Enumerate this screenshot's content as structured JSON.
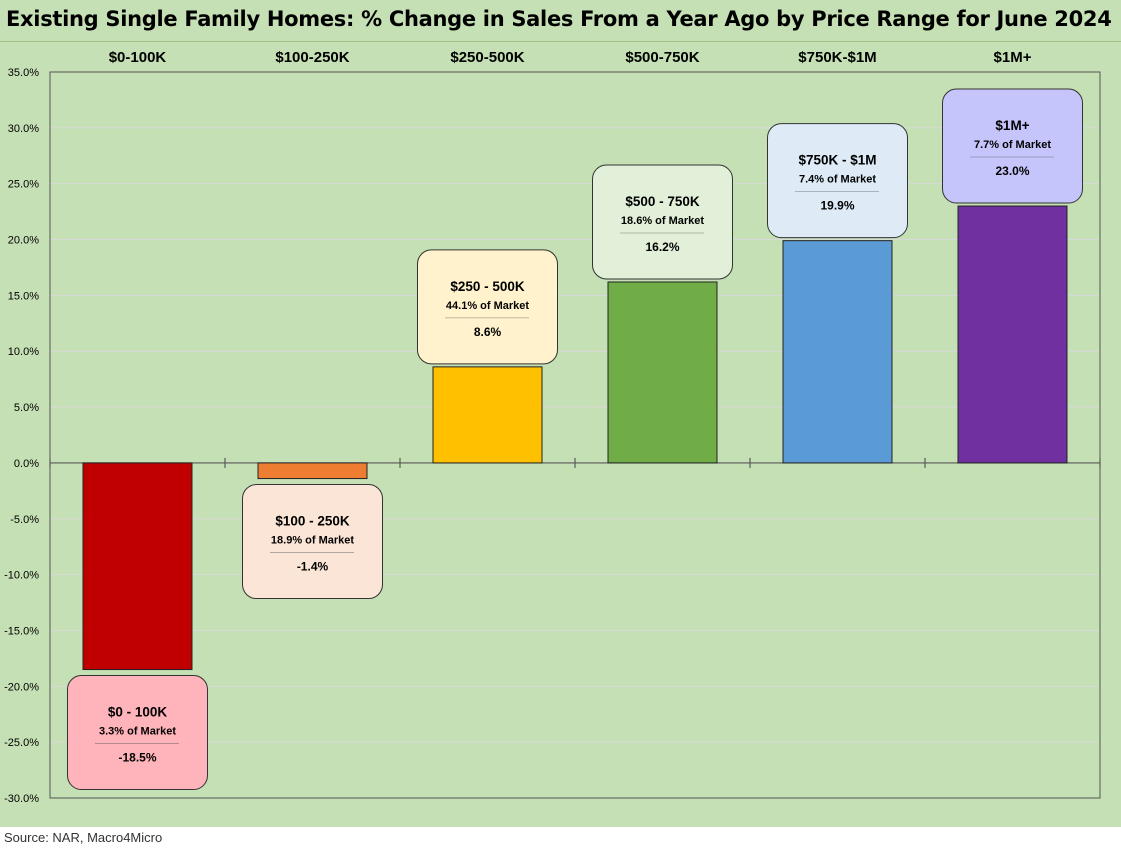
{
  "title": "Existing Single Family Homes: % Change in Sales From a Year Ago by Price Range for June 2024",
  "source": "Source: NAR, Macro4Micro",
  "chart_data": {
    "type": "bar",
    "categories": [
      "$0-100K",
      "$100-250K",
      "$250-500K",
      "$500-750K",
      "$750K-$1M",
      "$1M+"
    ],
    "values": [
      -18.5,
      -1.4,
      8.6,
      16.2,
      19.9,
      23.0
    ],
    "ylim": [
      -30,
      35
    ],
    "yticks": [
      "35.0%",
      "30.0%",
      "25.0%",
      "20.0%",
      "15.0%",
      "10.0%",
      "5.0%",
      "0.0%",
      "-5.0%",
      "-10.0%",
      "-15.0%",
      "-20.0%",
      "-25.0%",
      "-30.0%"
    ],
    "grid": true,
    "bar_colors": [
      "#c00000",
      "#ed7d31",
      "#ffc000",
      "#70ad47",
      "#5b9bd5",
      "#7030a0"
    ],
    "annotations": [
      {
        "title": "$0 - 100K",
        "share": "3.3% of Market",
        "value": "-18.5%",
        "fill": "#ffb3ba"
      },
      {
        "title": "$100 - 250K",
        "share": "18.9% of Market",
        "value": "-1.4%",
        "fill": "#fbe5d6"
      },
      {
        "title": "$250 - 500K",
        "share": "44.1% of Market",
        "value": "8.6%",
        "fill": "#fff2cc"
      },
      {
        "title": "$500 - 750K",
        "share": "18.6% of Market",
        "value": "16.2%",
        "fill": "#e2f0d9"
      },
      {
        "title": "$750K - $1M",
        "share": "7.4% of Market",
        "value": "19.9%",
        "fill": "#deebf7"
      },
      {
        "title": "$1M+",
        "share": "7.7% of Market",
        "value": "23.0%",
        "fill": "#c5c5fb"
      }
    ]
  }
}
